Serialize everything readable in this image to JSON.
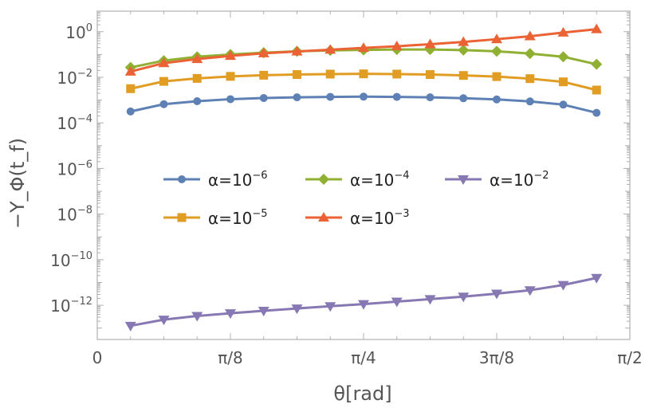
{
  "chart_data": {
    "type": "line",
    "yscale": "log",
    "xlabel": "θ[rad]",
    "ylabel": "−Y_Φ(t_f)",
    "xlim": [
      0,
      1.5708
    ],
    "ylim_exp": [
      -13.5,
      0.9
    ],
    "x_ticks": [
      {
        "value": 0,
        "label": "0"
      },
      {
        "value": 0.3927,
        "label": "π/8"
      },
      {
        "value": 0.7854,
        "label": "π/4"
      },
      {
        "value": 1.1781,
        "label": "3π/8"
      },
      {
        "value": 1.5708,
        "label": "π/2"
      }
    ],
    "y_ticks": [
      {
        "exp": 0,
        "base": "10",
        "sup": "0"
      },
      {
        "exp": -2,
        "base": "10",
        "sup": "−2"
      },
      {
        "exp": -4,
        "base": "10",
        "sup": "−4"
      },
      {
        "exp": -6,
        "base": "10",
        "sup": "−6"
      },
      {
        "exp": -8,
        "base": "10",
        "sup": "−8"
      },
      {
        "exp": -10,
        "base": "10",
        "sup": "−10"
      },
      {
        "exp": -12,
        "base": "10",
        "sup": "−12"
      }
    ],
    "x": [
      0.0982,
      0.1963,
      0.2945,
      0.3927,
      0.4909,
      0.589,
      0.6872,
      0.7854,
      0.8836,
      0.9817,
      1.0799,
      1.1781,
      1.2763,
      1.3744,
      1.4726
    ],
    "series": [
      {
        "name": "α=10⁻⁶",
        "label_main": "α=10",
        "label_sup": "−6",
        "color": "#5e81b5",
        "marker": "circle",
        "log10_values": [
          -3.5,
          -3.18,
          -3.05,
          -2.96,
          -2.91,
          -2.88,
          -2.86,
          -2.85,
          -2.86,
          -2.88,
          -2.92,
          -2.97,
          -3.06,
          -3.2,
          -3.56
        ]
      },
      {
        "name": "α=10⁻⁵",
        "label_main": "α=10",
        "label_sup": "−5",
        "color": "#e19c24",
        "marker": "square",
        "log10_values": [
          -2.5,
          -2.18,
          -2.05,
          -1.96,
          -1.91,
          -1.88,
          -1.86,
          -1.85,
          -1.86,
          -1.88,
          -1.92,
          -1.97,
          -2.06,
          -2.2,
          -2.56
        ]
      },
      {
        "name": "α=10⁻⁴",
        "label_main": "α=10",
        "label_sup": "−4",
        "color": "#8fb032",
        "marker": "diamond",
        "log10_values": [
          -1.57,
          -1.27,
          -1.1,
          -1.0,
          -0.92,
          -0.86,
          -0.82,
          -0.8,
          -0.78,
          -0.78,
          -0.81,
          -0.86,
          -0.96,
          -1.1,
          -1.43
        ]
      },
      {
        "name": "α=10⁻³",
        "label_main": "α=10",
        "label_sup": "−3",
        "color": "#eb6235",
        "marker": "triangle-up",
        "log10_values": [
          -1.75,
          -1.38,
          -1.2,
          -1.06,
          -0.95,
          -0.87,
          -0.79,
          -0.71,
          -0.64,
          -0.55,
          -0.45,
          -0.33,
          -0.2,
          -0.04,
          0.11
        ]
      },
      {
        "name": "α=10⁻²",
        "label_main": "α=10",
        "label_sup": "−2",
        "color": "#8778b3",
        "marker": "triangle-down",
        "log10_values": [
          -12.9,
          -12.63,
          -12.47,
          -12.35,
          -12.24,
          -12.14,
          -12.04,
          -11.95,
          -11.84,
          -11.73,
          -11.62,
          -11.49,
          -11.34,
          -11.11,
          -10.8
        ]
      }
    ],
    "legend_rows": [
      [
        0,
        2,
        4
      ],
      [
        1,
        3
      ]
    ]
  }
}
